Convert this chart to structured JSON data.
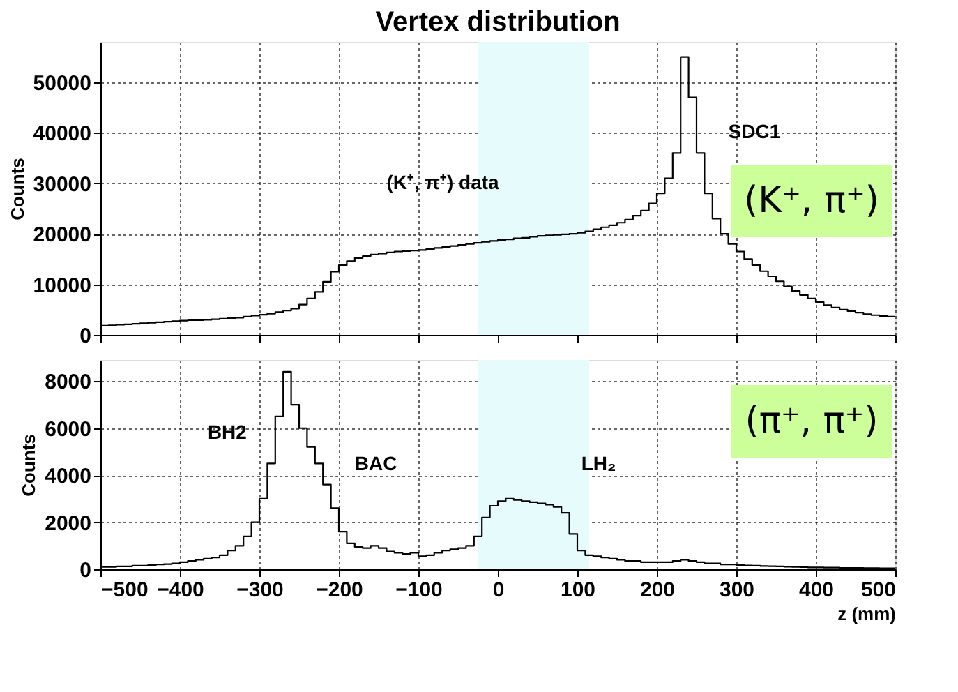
{
  "chart_data": [
    {
      "type": "histogram",
      "title": "Vertex distribution",
      "ylabel": "Counts",
      "bins": [
        -500,
        -490,
        -480,
        -470,
        -460,
        -450,
        -440,
        -430,
        -420,
        -410,
        -400,
        -390,
        -380,
        -370,
        -360,
        -350,
        -340,
        -330,
        -320,
        -310,
        -300,
        -290,
        -280,
        -270,
        -260,
        -250,
        -240,
        -230,
        -220,
        -210,
        -200,
        -190,
        -180,
        -170,
        -160,
        -150,
        -140,
        -130,
        -120,
        -110,
        -100,
        -90,
        -80,
        -70,
        -60,
        -50,
        -40,
        -30,
        -20,
        -10,
        0,
        10,
        20,
        30,
        40,
        50,
        60,
        70,
        80,
        90,
        100,
        110,
        120,
        130,
        140,
        150,
        160,
        170,
        180,
        190,
        200,
        210,
        220,
        230,
        240,
        250,
        260,
        270,
        280,
        290,
        300,
        310,
        320,
        330,
        340,
        350,
        360,
        370,
        380,
        390,
        400,
        410,
        420,
        430,
        440,
        450,
        460,
        470,
        480,
        490,
        500
      ],
      "values": [
        1800,
        1900,
        2000,
        2100,
        2200,
        2300,
        2400,
        2500,
        2600,
        2700,
        2800,
        2900,
        2900,
        3000,
        3100,
        3200,
        3300,
        3400,
        3600,
        3800,
        4000,
        4200,
        4500,
        4800,
        5200,
        6000,
        7200,
        8500,
        10500,
        12500,
        13800,
        14600,
        15200,
        15600,
        15900,
        16100,
        16300,
        16500,
        16600,
        16700,
        16800,
        17000,
        17200,
        17400,
        17600,
        17800,
        18000,
        18200,
        18400,
        18600,
        18800,
        18900,
        19100,
        19200,
        19400,
        19600,
        19700,
        19800,
        19900,
        20000,
        20200,
        20500,
        20900,
        21300,
        21700,
        22200,
        22800,
        23600,
        24600,
        26000,
        28000,
        31000,
        36000,
        55000,
        47000,
        36000,
        28000,
        23000,
        20000,
        18000,
        16500,
        15000,
        13800,
        12600,
        11600,
        10600,
        9600,
        8700,
        7900,
        7200,
        6500,
        5900,
        5400,
        5000,
        4700,
        4400,
        4100,
        3900,
        3700,
        3600
      ],
      "color": "#000000",
      "xlim": [
        -500,
        500
      ],
      "xticks": [
        -500,
        -400,
        -300,
        -200,
        -100,
        0,
        100,
        200,
        300,
        400,
        500
      ],
      "ylim": [
        0,
        58000
      ],
      "yticks": [
        0,
        10000,
        20000,
        30000,
        40000,
        50000
      ],
      "grid": true,
      "tick_labels": "y",
      "bands": [
        {
          "axis": "x",
          "from": -25,
          "to": 115,
          "color": "#e6fcfc"
        }
      ],
      "annotations": [
        "(K⁺, π⁺) data",
        "SDC1",
        "(K⁺, π⁺)"
      ]
    },
    {
      "type": "histogram",
      "xlabel": "z (mm)",
      "ylabel": "Counts",
      "bins": [
        -500,
        -490,
        -480,
        -470,
        -460,
        -450,
        -440,
        -430,
        -420,
        -410,
        -400,
        -390,
        -380,
        -370,
        -360,
        -350,
        -340,
        -330,
        -320,
        -310,
        -300,
        -290,
        -280,
        -270,
        -260,
        -250,
        -240,
        -230,
        -220,
        -210,
        -200,
        -190,
        -180,
        -170,
        -160,
        -150,
        -140,
        -130,
        -120,
        -110,
        -100,
        -90,
        -80,
        -70,
        -60,
        -50,
        -40,
        -30,
        -20,
        -10,
        0,
        10,
        20,
        30,
        40,
        50,
        60,
        70,
        80,
        90,
        100,
        110,
        120,
        130,
        140,
        150,
        160,
        170,
        180,
        190,
        200,
        210,
        220,
        230,
        240,
        250,
        260,
        270,
        280,
        290,
        300,
        310,
        320,
        330,
        340,
        350,
        360,
        370,
        380,
        390,
        400,
        410,
        420,
        430,
        440,
        450,
        460,
        470,
        480,
        490,
        500
      ],
      "values": [
        100,
        100,
        120,
        120,
        150,
        150,
        180,
        200,
        220,
        250,
        300,
        350,
        400,
        450,
        500,
        600,
        800,
        1000,
        1400,
        2000,
        3000,
        4500,
        6500,
        8400,
        7000,
        6000,
        5200,
        4500,
        3600,
        2600,
        1600,
        1100,
        950,
        900,
        1000,
        900,
        750,
        700,
        650,
        700,
        550,
        600,
        700,
        800,
        850,
        900,
        1000,
        1400,
        2200,
        2700,
        2900,
        3000,
        2950,
        2900,
        2850,
        2800,
        2750,
        2650,
        2400,
        1500,
        800,
        600,
        550,
        500,
        450,
        400,
        350,
        350,
        300,
        300,
        300,
        300,
        350,
        400,
        350,
        300,
        250,
        250,
        200,
        200,
        180,
        160,
        150,
        140,
        130,
        120,
        110,
        100,
        90,
        80,
        80,
        70,
        70,
        60,
        60,
        60,
        50,
        50,
        40,
        40
      ],
      "color": "#000000",
      "xlim": [
        -500,
        500
      ],
      "xticks": [
        -500,
        -400,
        -300,
        -200,
        -100,
        0,
        100,
        200,
        300,
        400,
        500
      ],
      "ylim": [
        0,
        8900
      ],
      "yticks": [
        0,
        2000,
        4000,
        6000,
        8000
      ],
      "grid": true,
      "bands": [
        {
          "axis": "x",
          "from": -25,
          "to": 115,
          "color": "#e6fcfc"
        }
      ],
      "annotations": [
        "BH2",
        "BAC",
        "LH₂",
        "(π⁺, π⁺)"
      ]
    }
  ]
}
